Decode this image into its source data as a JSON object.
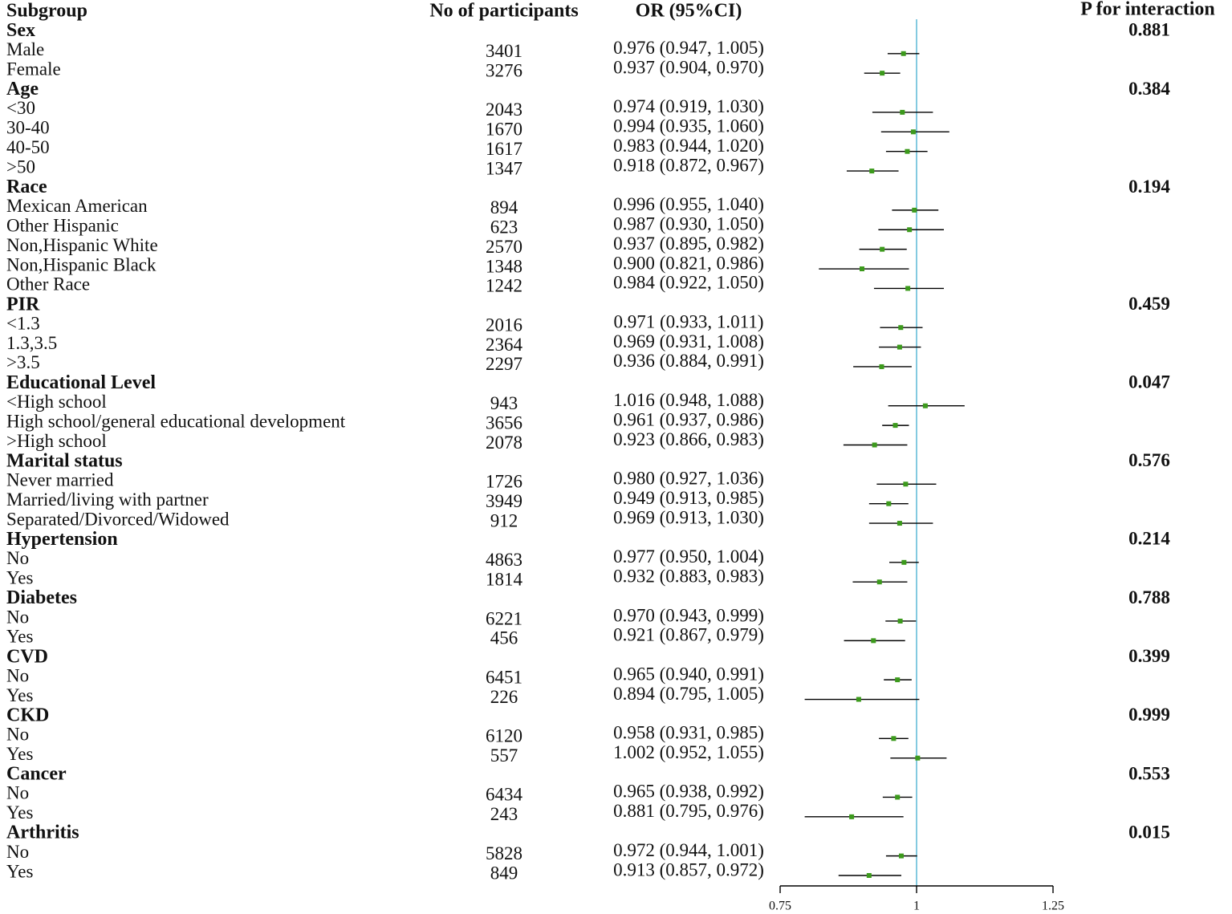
{
  "colors": {
    "ci_line": "#000000",
    "point": "#3c9a1c",
    "ref_line": "#5bb8d6",
    "axis": "#000000",
    "text": "#111111"
  },
  "chart_data": {
    "type": "forest",
    "headers": {
      "subgroup": "Subgroup",
      "n": "No of participants",
      "or": "OR (95%CI)",
      "p": "P for interaction"
    },
    "ref_value": 1,
    "axis": {
      "min": 0.75,
      "max": 1.25,
      "ticks": [
        0.75,
        1,
        1.25
      ],
      "tick_labels": [
        "0.75",
        "1",
        "1.25"
      ]
    },
    "groups": [
      {
        "name": "Sex",
        "p": "0.881",
        "rows": [
          {
            "label": "Male",
            "n": "3401",
            "ci": "0.976 (0.947, 1.005)",
            "or": 0.976,
            "lo": 0.947,
            "hi": 1.005
          },
          {
            "label": "Female",
            "n": "3276",
            "ci": "0.937 (0.904, 0.970)",
            "or": 0.937,
            "lo": 0.904,
            "hi": 0.97
          }
        ]
      },
      {
        "name": "Age",
        "p": "0.384",
        "rows": [
          {
            "label": "<30",
            "n": "2043",
            "ci": "0.974 (0.919, 1.030)",
            "or": 0.974,
            "lo": 0.919,
            "hi": 1.03
          },
          {
            "label": "30-40",
            "n": "1670",
            "ci": "0.994 (0.935, 1.060)",
            "or": 0.994,
            "lo": 0.935,
            "hi": 1.06
          },
          {
            "label": "40-50",
            "n": "1617",
            "ci": "0.983 (0.944, 1.020)",
            "or": 0.983,
            "lo": 0.944,
            "hi": 1.02
          },
          {
            "label": ">50",
            "n": "1347",
            "ci": "0.918 (0.872, 0.967)",
            "or": 0.918,
            "lo": 0.872,
            "hi": 0.967
          }
        ]
      },
      {
        "name": "Race",
        "p": "0.194",
        "rows": [
          {
            "label": "Mexican American",
            "n": "894",
            "ci": "0.996 (0.955, 1.040)",
            "or": 0.996,
            "lo": 0.955,
            "hi": 1.04
          },
          {
            "label": "Other Hispanic",
            "n": "623",
            "ci": "0.987 (0.930, 1.050)",
            "or": 0.987,
            "lo": 0.93,
            "hi": 1.05
          },
          {
            "label": "Non,Hispanic White",
            "n": "2570",
            "ci": "0.937 (0.895, 0.982)",
            "or": 0.937,
            "lo": 0.895,
            "hi": 0.982
          },
          {
            "label": "Non,Hispanic Black",
            "n": "1348",
            "ci": "0.900 (0.821, 0.986)",
            "or": 0.9,
            "lo": 0.821,
            "hi": 0.986
          },
          {
            "label": "Other Race",
            "n": "1242",
            "ci": "0.984 (0.922, 1.050)",
            "or": 0.984,
            "lo": 0.922,
            "hi": 1.05
          }
        ]
      },
      {
        "name": "PIR",
        "p": "0.459",
        "rows": [
          {
            "label": "<1.3",
            "n": "2016",
            "ci": "0.971 (0.933, 1.011)",
            "or": 0.971,
            "lo": 0.933,
            "hi": 1.011
          },
          {
            "label": "1.3,3.5",
            "n": "2364",
            "ci": "0.969 (0.931, 1.008)",
            "or": 0.969,
            "lo": 0.931,
            "hi": 1.008
          },
          {
            "label": ">3.5",
            "n": "2297",
            "ci": "0.936 (0.884, 0.991)",
            "or": 0.936,
            "lo": 0.884,
            "hi": 0.991
          }
        ]
      },
      {
        "name": "Educational Level",
        "p": "0.047",
        "rows": [
          {
            "label": "<High school",
            "n": "943",
            "ci": "1.016 (0.948, 1.088)",
            "or": 1.016,
            "lo": 0.948,
            "hi": 1.088
          },
          {
            "label": "High school/general educational development",
            "n": "3656",
            "ci": "0.961 (0.937, 0.986)",
            "or": 0.961,
            "lo": 0.937,
            "hi": 0.986
          },
          {
            "label": ">High school",
            "n": "2078",
            "ci": "0.923 (0.866, 0.983)",
            "or": 0.923,
            "lo": 0.866,
            "hi": 0.983
          }
        ]
      },
      {
        "name": "Marital status",
        "p": "0.576",
        "rows": [
          {
            "label": "Never married",
            "n": "1726",
            "ci": "0.980 (0.927, 1.036)",
            "or": 0.98,
            "lo": 0.927,
            "hi": 1.036
          },
          {
            "label": "Married/living with partner",
            "n": "3949",
            "ci": "0.949 (0.913, 0.985)",
            "or": 0.949,
            "lo": 0.913,
            "hi": 0.985
          },
          {
            "label": "Separated/Divorced/Widowed",
            "n": "912",
            "ci": "0.969 (0.913, 1.030)",
            "or": 0.969,
            "lo": 0.913,
            "hi": 1.03
          }
        ]
      },
      {
        "name": "Hypertension",
        "p": "0.214",
        "rows": [
          {
            "label": "No",
            "n": "4863",
            "ci": "0.977 (0.950, 1.004)",
            "or": 0.977,
            "lo": 0.95,
            "hi": 1.004
          },
          {
            "label": "Yes",
            "n": "1814",
            "ci": "0.932 (0.883, 0.983)",
            "or": 0.932,
            "lo": 0.883,
            "hi": 0.983
          }
        ]
      },
      {
        "name": "Diabetes",
        "p": "0.788",
        "rows": [
          {
            "label": "No",
            "n": "6221",
            "ci": "0.970 (0.943, 0.999)",
            "or": 0.97,
            "lo": 0.943,
            "hi": 0.999
          },
          {
            "label": "Yes",
            "n": "456",
            "ci": "0.921 (0.867, 0.979)",
            "or": 0.921,
            "lo": 0.867,
            "hi": 0.979
          }
        ]
      },
      {
        "name": "CVD",
        "p": "0.399",
        "rows": [
          {
            "label": "No",
            "n": "6451",
            "ci": "0.965 (0.940, 0.991)",
            "or": 0.965,
            "lo": 0.94,
            "hi": 0.991
          },
          {
            "label": "Yes",
            "n": "226",
            "ci": "0.894 (0.795, 1.005)",
            "or": 0.894,
            "lo": 0.795,
            "hi": 1.005
          }
        ]
      },
      {
        "name": "CKD",
        "p": "0.999",
        "rows": [
          {
            "label": "No",
            "n": "6120",
            "ci": "0.958 (0.931, 0.985)",
            "or": 0.958,
            "lo": 0.931,
            "hi": 0.985
          },
          {
            "label": "Yes",
            "n": "557",
            "ci": "1.002 (0.952, 1.055)",
            "or": 1.002,
            "lo": 0.952,
            "hi": 1.055
          }
        ]
      },
      {
        "name": "Cancer",
        "p": "0.553",
        "rows": [
          {
            "label": "No",
            "n": "6434",
            "ci": "0.965 (0.938, 0.992)",
            "or": 0.965,
            "lo": 0.938,
            "hi": 0.992
          },
          {
            "label": "Yes",
            "n": "243",
            "ci": "0.881 (0.795, 0.976)",
            "or": 0.881,
            "lo": 0.795,
            "hi": 0.976
          }
        ]
      },
      {
        "name": "Arthritis",
        "p": "0.015",
        "rows": [
          {
            "label": "No",
            "n": "5828",
            "ci": "0.972 (0.944, 1.001)",
            "or": 0.972,
            "lo": 0.944,
            "hi": 1.001
          },
          {
            "label": "Yes",
            "n": "849",
            "ci": "0.913 (0.857, 0.972)",
            "or": 0.913,
            "lo": 0.857,
            "hi": 0.972
          }
        ]
      }
    ]
  }
}
